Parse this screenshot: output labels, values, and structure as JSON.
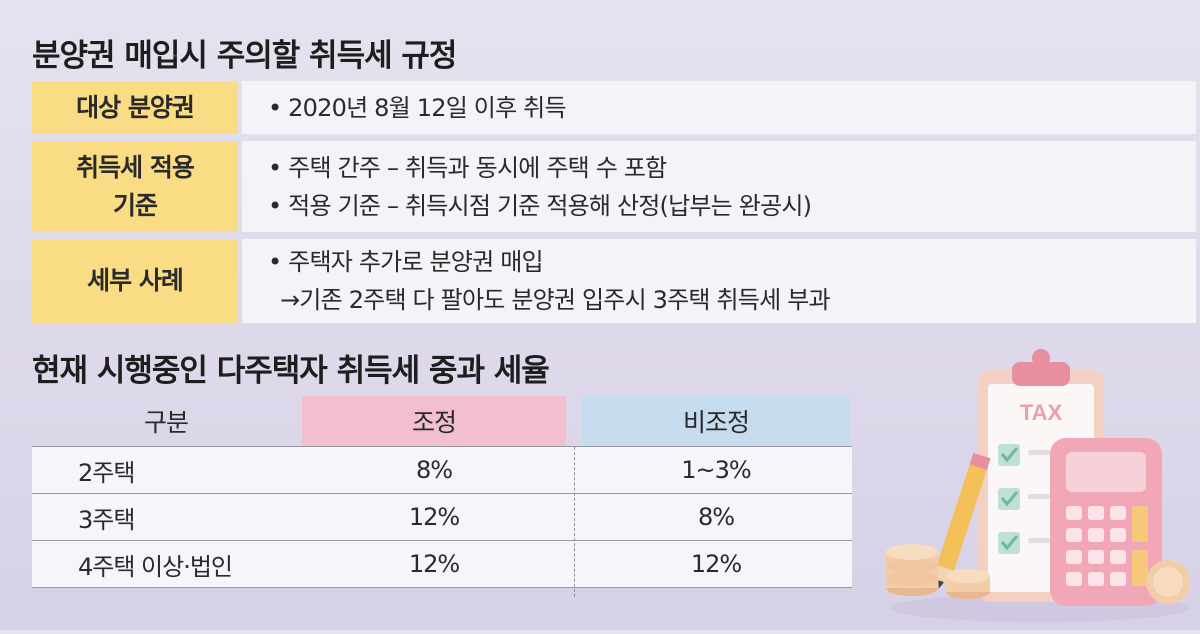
{
  "section1": {
    "title": "분양권 매입시 주의할 취득세 규정",
    "rows": [
      {
        "label": "대상 분양권",
        "lines": [
          "• 2020년 8월 12일 이후 취득"
        ]
      },
      {
        "label_lines": [
          "취득세 적용",
          "기준"
        ],
        "lines": [
          "• 주택 간주 – 취득과 동시에 주택 수 포함",
          "• 적용 기준 – 취득시점 기준 적용해 산정(납부는 완공시)"
        ]
      },
      {
        "label": "세부 사례",
        "lines": [
          "• 주택자 추가로 분양권 매입",
          "→기존 2주택 다 팔아도 분양권 입주시 3주택 취득세 부과"
        ]
      }
    ]
  },
  "section2": {
    "title": "현재 시행중인 다주택자 취득세 중과 세율",
    "headers": [
      "구분",
      "조정",
      "비조정"
    ],
    "rows": [
      [
        "2주택",
        "8%",
        "1~3%"
      ],
      [
        "3주택",
        "12%",
        "8%"
      ],
      [
        "4주택 이상·법인",
        "12%",
        "12%"
      ]
    ]
  },
  "illustration": {
    "clipboard_text": "TAX"
  },
  "colors": {
    "label_bg": "#f9dc84",
    "adjusted_bg": "#f1bfcd",
    "non_adjusted_bg": "#c6dcee"
  }
}
